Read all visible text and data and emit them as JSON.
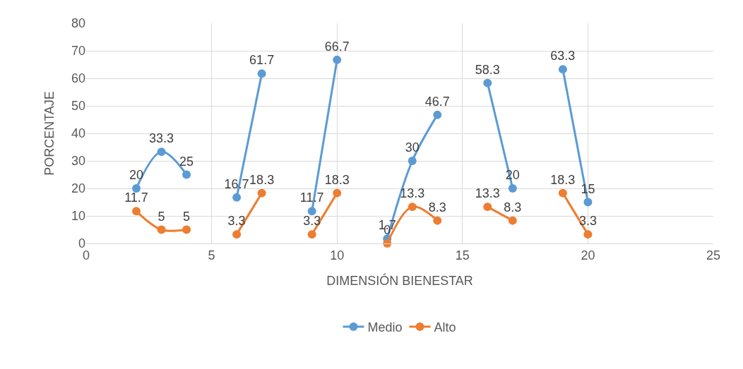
{
  "chart_data": {
    "type": "line",
    "xlabel": "DIMENSIÓN BIENESTAR",
    "ylabel": "PORCENTAJE",
    "x": [
      2,
      3,
      4,
      5,
      6,
      7,
      8,
      9,
      10,
      11,
      12,
      13,
      14,
      15,
      16,
      17,
      18,
      19,
      20
    ],
    "series": [
      {
        "name": "Medio",
        "color": "#5b9bd5",
        "values": [
          20,
          33.3,
          25,
          null,
          16.7,
          61.7,
          null,
          11.7,
          66.7,
          null,
          1.7,
          30,
          46.7,
          null,
          58.3,
          20,
          null,
          63.3,
          15
        ]
      },
      {
        "name": "Alto",
        "color": "#ed7d31",
        "values": [
          11.7,
          5,
          5,
          null,
          3.3,
          18.3,
          null,
          3.3,
          18.3,
          null,
          0,
          13.3,
          8.3,
          null,
          13.3,
          8.3,
          null,
          18.3,
          3.3
        ]
      }
    ],
    "xlim": [
      0,
      25
    ],
    "xticks": [
      0,
      5,
      10,
      15,
      20,
      25
    ],
    "ylim": [
      0,
      80
    ],
    "yticks": [
      0,
      10,
      20,
      30,
      40,
      50,
      60,
      70,
      80
    ],
    "grid": true,
    "legend": "bottom",
    "marker": "circle",
    "line_style": "solid",
    "data_labels": true
  }
}
